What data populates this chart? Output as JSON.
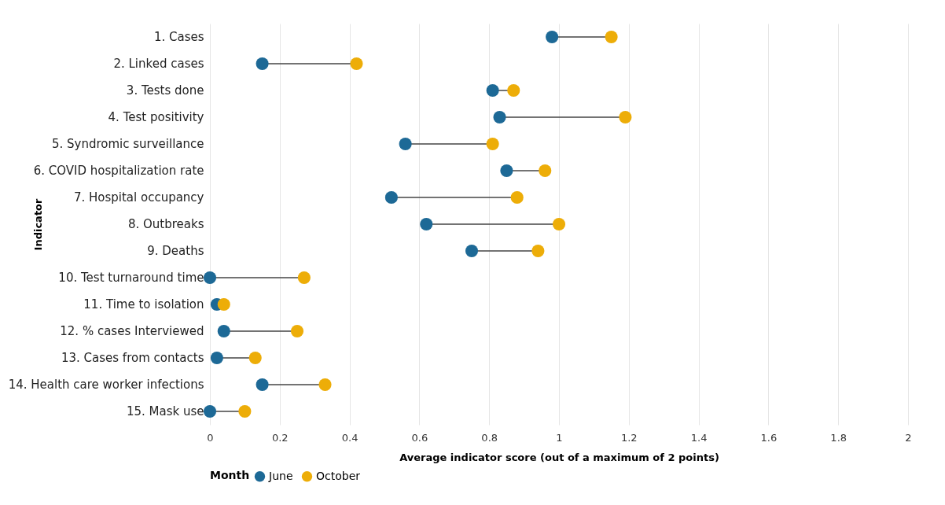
{
  "chart_data": {
    "type": "scatter",
    "xlabel": "Average indicator score (out of a maximum of 2 points)",
    "ylabel": "Indicator",
    "legend_title": "Month",
    "categories": [
      "1. Cases",
      "2. Linked cases",
      "3. Tests done",
      "4. Test positivity",
      "5. Syndromic surveillance",
      "6. COVID hospitalization rate",
      "7. Hospital occupancy",
      "8. Outbreaks",
      "9. Deaths",
      "10. Test turnaround time",
      "11. Time to isolation",
      "12. % cases Interviewed",
      "13. Cases from contacts",
      "14. Health care worker infections",
      "15. Mask use"
    ],
    "series": [
      {
        "name": "June",
        "color": "#1d6996",
        "values": [
          0.98,
          0.15,
          0.81,
          0.83,
          0.56,
          0.85,
          0.52,
          0.62,
          0.75,
          0,
          0.02,
          0.04,
          0.02,
          0.15,
          0
        ]
      },
      {
        "name": "October",
        "color": "#edad08",
        "values": [
          1.15,
          0.42,
          0.87,
          1.19,
          0.81,
          0.96,
          0.88,
          1.0,
          0.94,
          0.27,
          0.04,
          0.25,
          0.13,
          0.33,
          0.1
        ]
      }
    ],
    "xlim": [
      0,
      2
    ],
    "xticks": [
      0,
      0.2,
      0.4,
      0.6,
      0.8,
      1,
      1.2,
      1.4,
      1.6,
      1.8,
      2
    ],
    "grid": "x",
    "orientation": "horizontal",
    "legend": "bottom left",
    "marker": "circle"
  }
}
